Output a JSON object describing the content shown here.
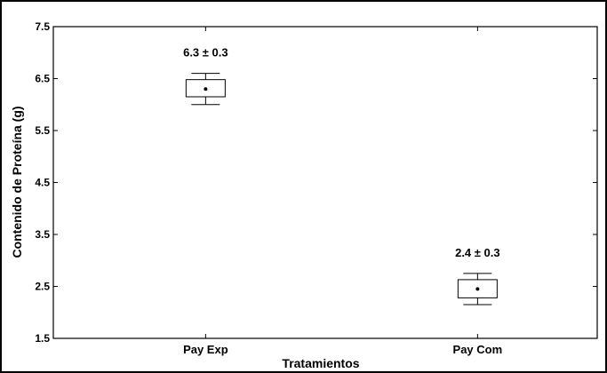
{
  "chart_data": {
    "type": "box",
    "xlabel": "Tratamientos",
    "ylabel": "Contenido de Proteína (g)",
    "ylim": [
      1.5,
      7.5
    ],
    "yticks": [
      "1.5",
      "2.5",
      "3.5",
      "4.5",
      "5.5",
      "6.5",
      "7.5"
    ],
    "categories": [
      "Pay Exp",
      "Pay Com"
    ],
    "boxes": [
      {
        "category": "Pay Exp",
        "mean": 6.3,
        "q1": 6.15,
        "q3": 6.48,
        "whisker_low": 6.0,
        "whisker_high": 6.6,
        "annotation": "6.3 ± 0.3"
      },
      {
        "category": "Pay Com",
        "mean": 2.45,
        "q1": 2.28,
        "q3": 2.63,
        "whisker_low": 2.15,
        "whisker_high": 2.75,
        "annotation": "2.4 ± 0.3"
      }
    ],
    "grid": false,
    "legend": "none"
  }
}
